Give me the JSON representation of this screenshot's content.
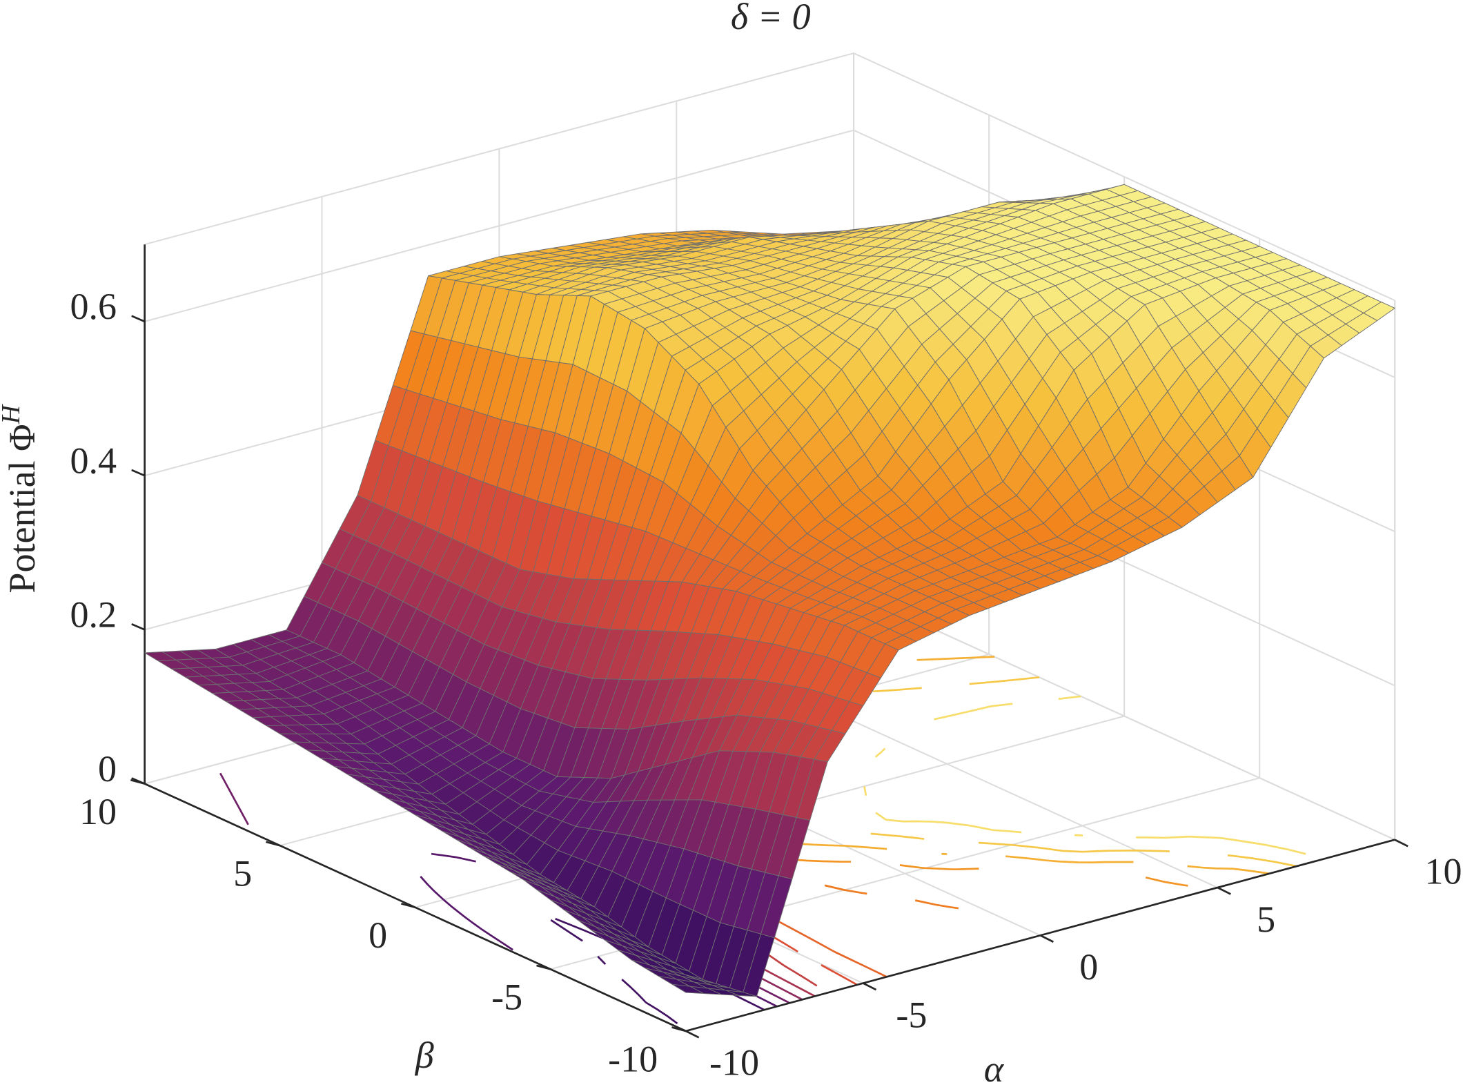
{
  "chart_data": {
    "type": "surface",
    "title": "δ = 0",
    "xlabel": "α",
    "ylabel": "β",
    "zlabel": {
      "text": "Potential Φ",
      "superscript": "H"
    },
    "x": [
      -10,
      -8,
      -6,
      -4,
      -2,
      0,
      2,
      4,
      6,
      8,
      10
    ],
    "y": [
      -10,
      -8,
      -6,
      -4,
      -2,
      0,
      2,
      4,
      6,
      8,
      10
    ],
    "z": [
      [
        0.05,
        0.02,
        0.3,
        0.42,
        0.44,
        0.45,
        0.46,
        0.48,
        0.52,
        0.65,
        0.69
      ],
      [
        0.06,
        0.01,
        0.28,
        0.42,
        0.44,
        0.45,
        0.46,
        0.5,
        0.6,
        0.68,
        0.69
      ],
      [
        0.08,
        0.02,
        0.25,
        0.41,
        0.44,
        0.46,
        0.5,
        0.62,
        0.68,
        0.69,
        0.69
      ],
      [
        0.1,
        0.04,
        0.2,
        0.4,
        0.45,
        0.5,
        0.6,
        0.68,
        0.69,
        0.69,
        0.69
      ],
      [
        0.11,
        0.05,
        0.15,
        0.38,
        0.5,
        0.58,
        0.66,
        0.69,
        0.69,
        0.69,
        0.69
      ],
      [
        0.12,
        0.07,
        0.12,
        0.35,
        0.58,
        0.62,
        0.64,
        0.67,
        0.68,
        0.69,
        0.69
      ],
      [
        0.13,
        0.09,
        0.12,
        0.32,
        0.62,
        0.63,
        0.63,
        0.64,
        0.66,
        0.66,
        0.64
      ],
      [
        0.14,
        0.11,
        0.13,
        0.3,
        0.63,
        0.63,
        0.62,
        0.62,
        0.62,
        0.6,
        0.57
      ],
      [
        0.15,
        0.13,
        0.14,
        0.3,
        0.6,
        0.61,
        0.6,
        0.6,
        0.58,
        0.55,
        0.52
      ],
      [
        0.16,
        0.14,
        0.15,
        0.3,
        0.58,
        0.58,
        0.57,
        0.56,
        0.54,
        0.51,
        0.49
      ],
      [
        0.17,
        0.15,
        0.15,
        0.3,
        0.56,
        0.56,
        0.55,
        0.54,
        0.52,
        0.49,
        0.47
      ]
    ],
    "xlim": [
      -10,
      10
    ],
    "ylim": [
      -10,
      10
    ],
    "zlim": [
      0,
      0.7
    ],
    "xticks": [
      -10,
      -5,
      0,
      5,
      10
    ],
    "yticks": [
      -10,
      -5,
      0,
      5,
      10
    ],
    "zticks": [
      0,
      0.2,
      0.4,
      0.6
    ],
    "grid": true,
    "colormap": [
      "#2d0c5b",
      "#5e1a6e",
      "#a02f55",
      "#dd4f35",
      "#f2841c",
      "#f6c13c",
      "#f8f28e"
    ],
    "contour_levels": [
      0.05,
      0.1,
      0.15,
      0.2,
      0.25,
      0.3,
      0.35,
      0.4,
      0.45,
      0.5,
      0.55,
      0.6,
      0.65
    ],
    "mesh_color": "#6e6e6e"
  }
}
